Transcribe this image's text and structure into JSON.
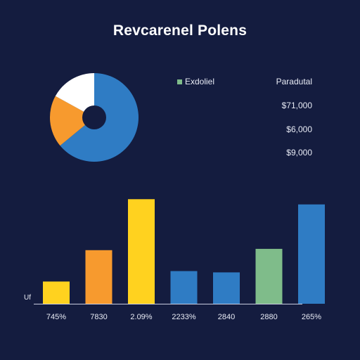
{
  "chart_data": [
    {
      "type": "pie",
      "donut": true,
      "slices": [
        {
          "value": 64,
          "color": "#2f7cc4"
        },
        {
          "value": 19,
          "color": "#f79a2e"
        },
        {
          "value": 17,
          "color": "#ffffff"
        }
      ]
    },
    {
      "type": "bar",
      "title": "Revcarenel Polens",
      "ylabel": "Uf",
      "categories": [
        "745%",
        "7830",
        "2.09%",
        "2233%",
        "2840",
        "2880",
        "265%"
      ],
      "values": [
        17,
        41,
        80,
        25,
        24,
        42,
        76
      ],
      "colors": [
        "#ffd21f",
        "#f79a2e",
        "#ffd21f",
        "#2f7cc4",
        "#2f7cc4",
        "#7fbc8a",
        "#2f7cc4"
      ],
      "ylim": [
        0,
        85
      ],
      "grid": false,
      "legend": {
        "label": "Exdoliel",
        "color": "#7fbc8a",
        "placement": "top-right"
      },
      "annotations": {
        "header": "Paradutal",
        "values": [
          "$71,000",
          "$6,000",
          "$9,000"
        ]
      }
    }
  ]
}
